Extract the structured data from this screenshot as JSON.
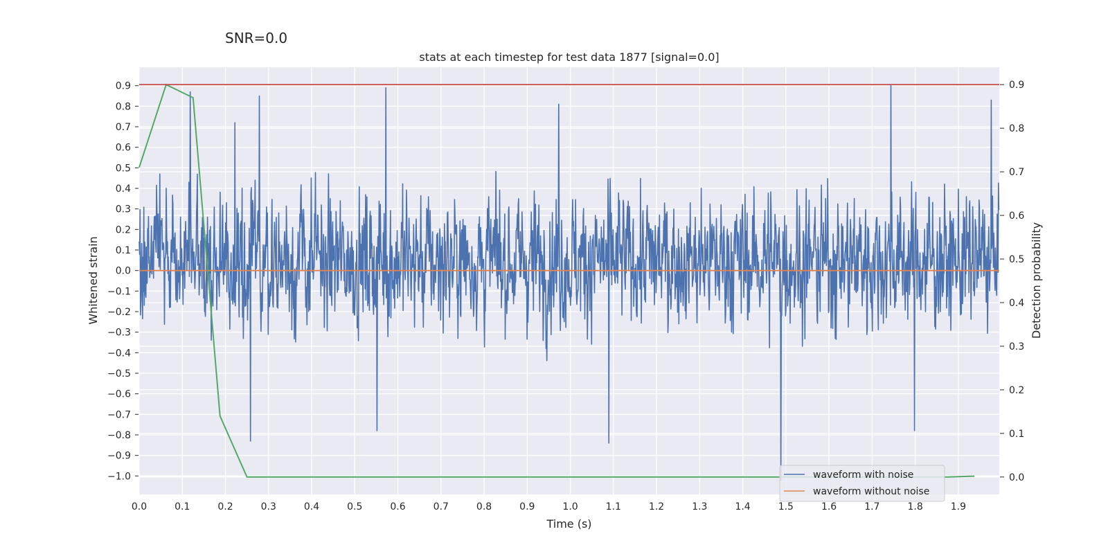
{
  "chart_data": {
    "type": "line",
    "suptitle": "SNR=0.0",
    "title": "stats at each timestep for test data 1877 [signal=0.0]",
    "xlabel": "Time (s)",
    "ylabel_left": "Whitened strain",
    "ylabel_right": "Detection probability",
    "xlim": [
      0.0,
      1.995
    ],
    "ylim_left": [
      -1.09,
      0.99
    ],
    "ylim_right": [
      -0.04,
      0.94
    ],
    "xticks": [
      "0.0",
      "0.1",
      "0.2",
      "0.3",
      "0.4",
      "0.5",
      "0.6",
      "0.7",
      "0.8",
      "0.9",
      "1.0",
      "1.1",
      "1.2",
      "1.3",
      "1.4",
      "1.5",
      "1.6",
      "1.7",
      "1.8",
      "1.9"
    ],
    "yticks_left": [
      "−1.0",
      "−0.9",
      "−0.8",
      "−0.7",
      "−0.6",
      "−0.5",
      "−0.4",
      "−0.3",
      "−0.2",
      "−0.1",
      "0.0",
      "0.1",
      "0.2",
      "0.3",
      "0.4",
      "0.5",
      "0.6",
      "0.7",
      "0.8",
      "0.9"
    ],
    "yticks_right": [
      "0.0",
      "0.1",
      "0.2",
      "0.3",
      "0.4",
      "0.5",
      "0.6",
      "0.7",
      "0.8",
      "0.9"
    ],
    "grid": true,
    "legend_position": "bottom-right",
    "series": [
      {
        "name": "waveform with noise",
        "axis": "left",
        "color": "#4c72b0",
        "description": "dense noise signal sampled ~2048 Hz over 2 s, mostly within -0.6..0.7",
        "notable_peaks": [
          {
            "x": 0.118,
            "y": 0.87
          },
          {
            "x": 0.222,
            "y": 0.72
          },
          {
            "x": 0.279,
            "y": 0.85
          },
          {
            "x": 0.572,
            "y": 0.89
          },
          {
            "x": 0.973,
            "y": 0.81
          },
          {
            "x": 1.744,
            "y": 0.9
          },
          {
            "x": 1.976,
            "y": 0.83
          },
          {
            "x": 0.258,
            "y": -0.83
          },
          {
            "x": 0.552,
            "y": -0.78
          },
          {
            "x": 1.089,
            "y": -0.84
          },
          {
            "x": 1.488,
            "y": -1.02
          },
          {
            "x": 1.798,
            "y": -0.78
          }
        ]
      },
      {
        "name": "waveform without noise",
        "axis": "left",
        "color": "#dd8452",
        "x": [
          0.0,
          1.995
        ],
        "y": [
          0.0,
          0.0
        ]
      },
      {
        "name": "detection probability",
        "axis": "right",
        "color": "#55a868",
        "x": [
          0.0,
          0.0625,
          0.125,
          0.1875,
          0.25,
          0.3125,
          0.375,
          0.4375,
          0.5,
          0.5625,
          0.625,
          0.6875,
          0.75,
          0.8125,
          0.875,
          0.9375,
          1.0,
          1.0625,
          1.125,
          1.1875,
          1.25,
          1.3125,
          1.375,
          1.4375,
          1.5,
          1.5625,
          1.625,
          1.6875,
          1.75,
          1.8125,
          1.875,
          1.9375
        ],
        "y": [
          0.71,
          0.9,
          0.87,
          0.14,
          0.0,
          0.0,
          0.0,
          0.0,
          0.0,
          0.0,
          0.0,
          0.0,
          0.0,
          0.0,
          0.0,
          0.0,
          0.0,
          0.0,
          0.0,
          0.0,
          0.0,
          0.0,
          0.0,
          0.0,
          0.0,
          0.0,
          0.0,
          0.0,
          0.0,
          0.0,
          0.0,
          0.002
        ]
      },
      {
        "name": "threshold",
        "axis": "right",
        "color": "#c44e52",
        "value": 0.9
      }
    ],
    "legend": [
      {
        "label": "waveform with noise",
        "color": "#4c72b0"
      },
      {
        "label": "waveform without noise",
        "color": "#dd8452"
      }
    ]
  }
}
